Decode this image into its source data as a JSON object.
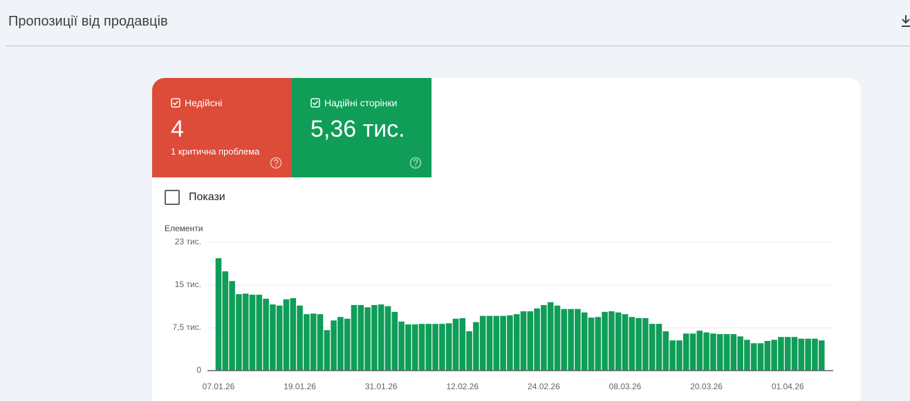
{
  "header": {
    "title": "Пропозиції від продавців"
  },
  "tiles": [
    {
      "label": "Недійсні",
      "value": "4",
      "note": "1 критична проблема",
      "color": "#dd4b39"
    },
    {
      "label": "Надійні сторінки",
      "value": "5,36 тис.",
      "color": "#0f9d58"
    }
  ],
  "toggle": {
    "label": "Покази"
  },
  "chart_data": {
    "type": "bar",
    "y_label": "Елементи",
    "color": "#0f9d58",
    "categories": [
      "07.01.26",
      null,
      null,
      null,
      null,
      null,
      null,
      null,
      null,
      null,
      null,
      null,
      "19.01.26",
      null,
      null,
      null,
      null,
      null,
      null,
      null,
      null,
      null,
      null,
      null,
      "31.01.26",
      null,
      null,
      null,
      null,
      null,
      null,
      null,
      null,
      null,
      null,
      null,
      "12.02.26",
      null,
      null,
      null,
      null,
      null,
      null,
      null,
      null,
      null,
      null,
      null,
      "24.02.26",
      null,
      null,
      null,
      null,
      null,
      null,
      null,
      null,
      null,
      null,
      null,
      "08.03.26",
      null,
      null,
      null,
      null,
      null,
      null,
      null,
      null,
      null,
      null,
      null,
      "20.03.26",
      null,
      null,
      null,
      null,
      null,
      null,
      null,
      null,
      null,
      null,
      null,
      "01.04.26",
      null,
      null,
      null,
      null,
      null
    ],
    "values": [
      19700,
      17400,
      15700,
      13400,
      13500,
      13300,
      13300,
      12600,
      11600,
      11400,
      12500,
      12700,
      11400,
      9900,
      10000,
      9900,
      7100,
      8800,
      9400,
      9100,
      11500,
      11500,
      11100,
      11500,
      11600,
      11300,
      10300,
      8600,
      8100,
      8100,
      8200,
      8200,
      8200,
      8200,
      8300,
      9100,
      9200,
      6900,
      8500,
      9600,
      9600,
      9600,
      9600,
      9700,
      9900,
      10400,
      10400,
      10900,
      11500,
      12000,
      11400,
      10800,
      10800,
      10800,
      10200,
      9300,
      9400,
      10300,
      10400,
      10200,
      9900,
      9400,
      9200,
      9200,
      8200,
      8200,
      6900,
      5300,
      5300,
      6500,
      6500,
      7000,
      6700,
      6500,
      6400,
      6400,
      6400,
      6000,
      5400,
      4800,
      4800,
      5200,
      5400,
      5900,
      5900,
      5900,
      5600,
      5600,
      5600,
      5300
    ],
    "ylim": [
      0,
      22500
    ],
    "yticks": [
      0,
      {
        "value": 7500,
        "label": "7,5 тис."
      },
      {
        "value": 15000,
        "label": "15 тис."
      },
      {
        "value": 22500,
        "label": "23 тис."
      }
    ],
    "grid": true
  }
}
